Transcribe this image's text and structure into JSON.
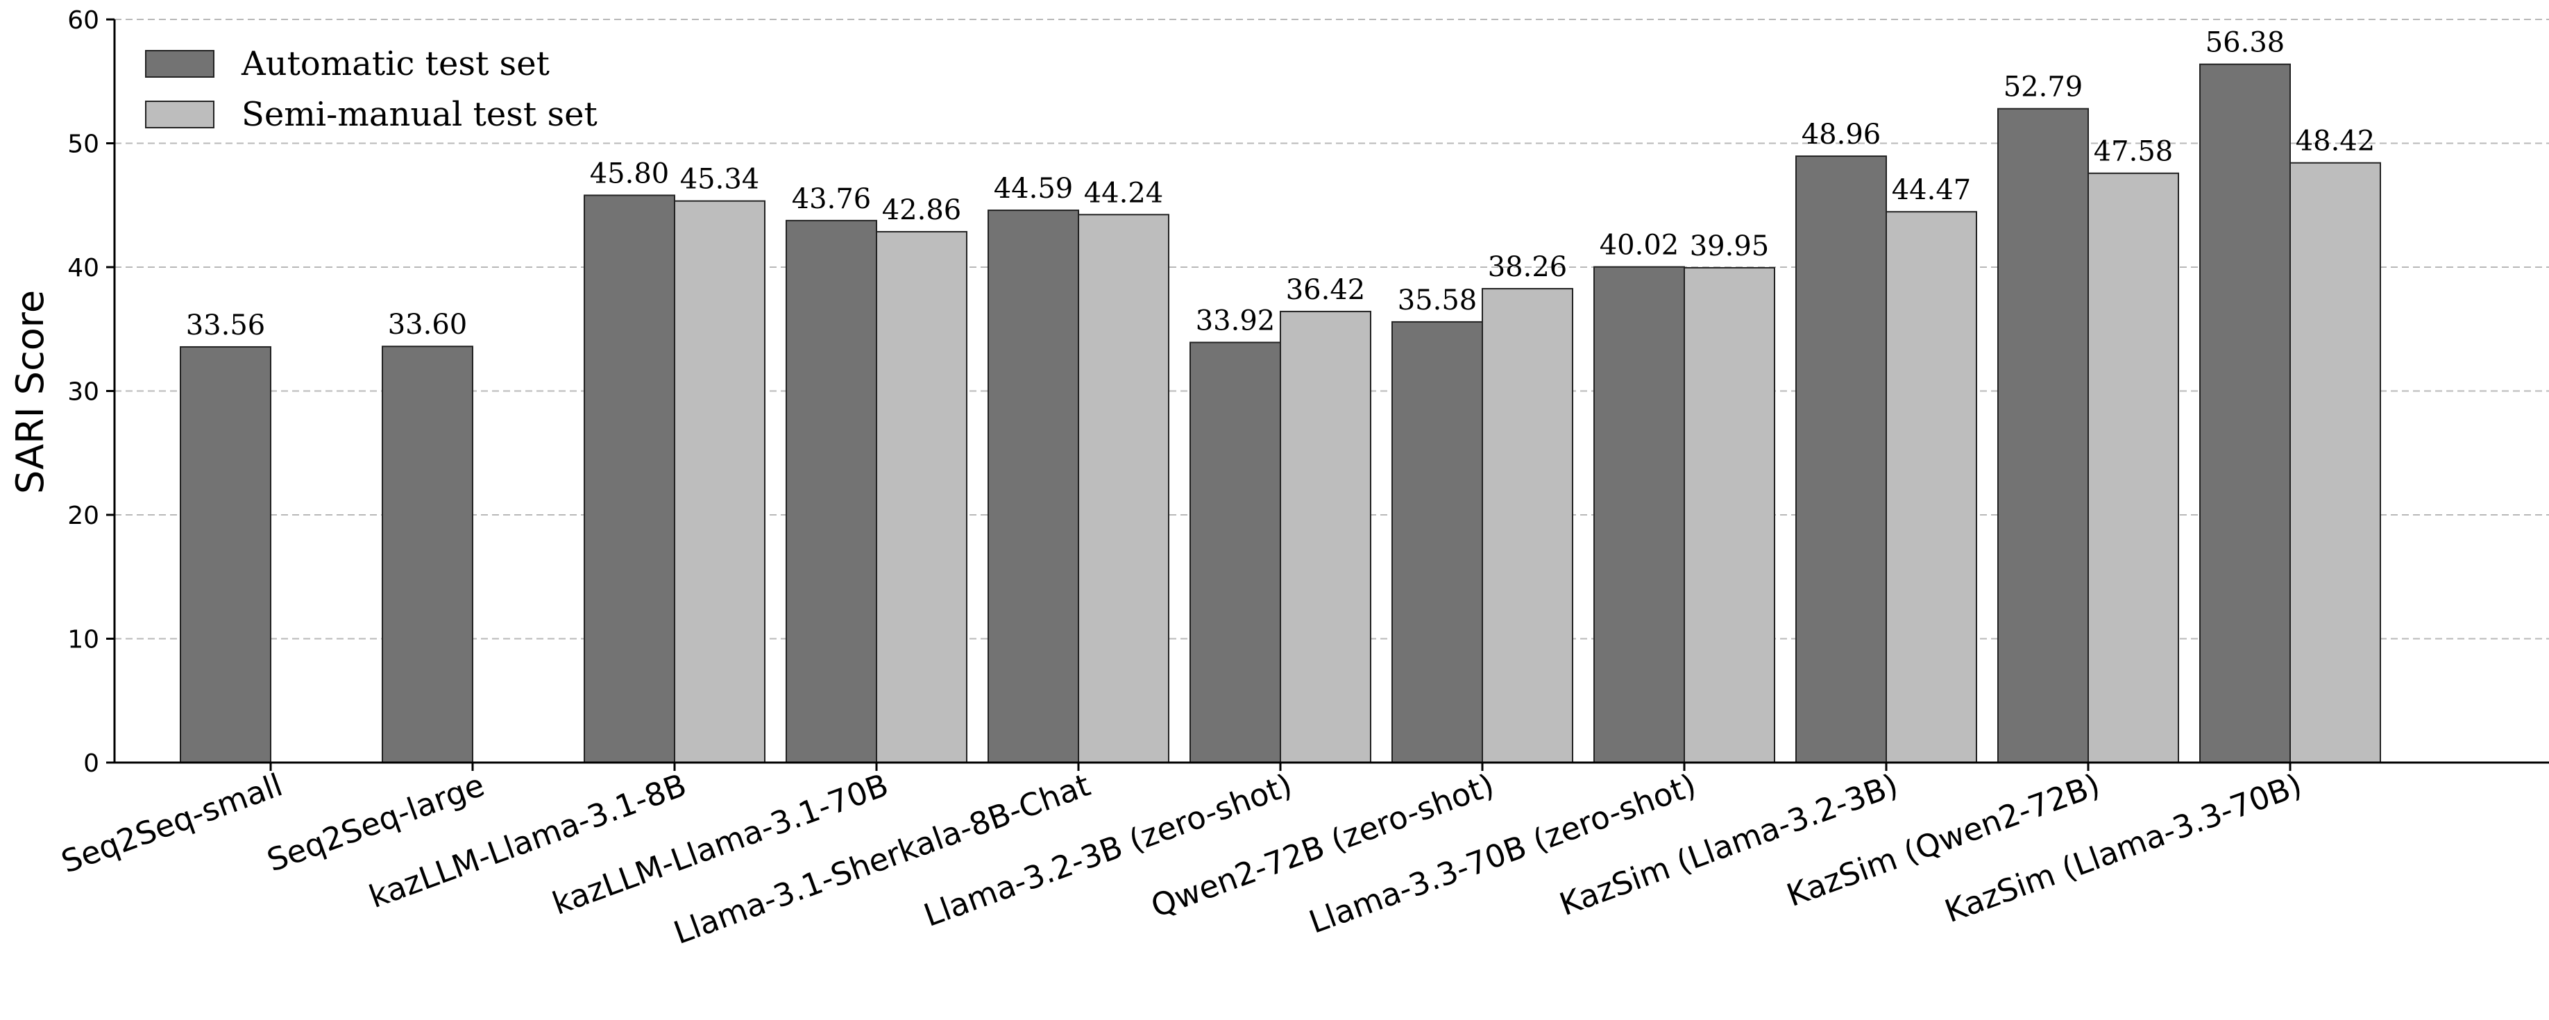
{
  "chart_data": {
    "type": "bar",
    "title": "",
    "xlabel": "",
    "ylabel": "SARI Score",
    "ylim": [
      0,
      60
    ],
    "yticks": [
      0,
      10,
      20,
      30,
      40,
      50,
      60
    ],
    "grid": "horizontal dashed",
    "legend_position": "top-left",
    "categories": [
      "Seq2Seq-small",
      "Seq2Seq-large",
      "kazLLM-Llama-3.1-8B",
      "kazLLM-Llama-3.1-70B",
      "Llama-3.1-Sherkala-8B-Chat",
      "Llama-3.2-3B (zero-shot)",
      "Qwen2-72B (zero-shot)",
      "Llama-3.3-70B (zero-shot)",
      "KazSim (Llama-3.2-3B)",
      "KazSim (Qwen2-72B)",
      "KazSim (Llama-3.3-70B)"
    ],
    "series": [
      {
        "name": "Automatic test set",
        "color": "#737373",
        "values": [
          33.56,
          33.6,
          45.8,
          43.76,
          44.59,
          33.92,
          35.58,
          40.02,
          48.96,
          52.79,
          56.38
        ],
        "labels": [
          "33.56",
          "33.60",
          "45.80",
          "43.76",
          "44.59",
          "33.92",
          "35.58",
          "40.02",
          "48.96",
          "52.79",
          "56.38"
        ]
      },
      {
        "name": "Semi-manual test set",
        "color": "#bdbdbd",
        "values": [
          null,
          null,
          45.34,
          42.86,
          44.24,
          36.42,
          38.26,
          39.95,
          44.47,
          47.58,
          48.42
        ],
        "labels": [
          null,
          null,
          "45.34",
          "42.86",
          "44.24",
          "36.42",
          "38.26",
          "39.95",
          "44.47",
          "47.58",
          "48.42"
        ]
      }
    ]
  }
}
